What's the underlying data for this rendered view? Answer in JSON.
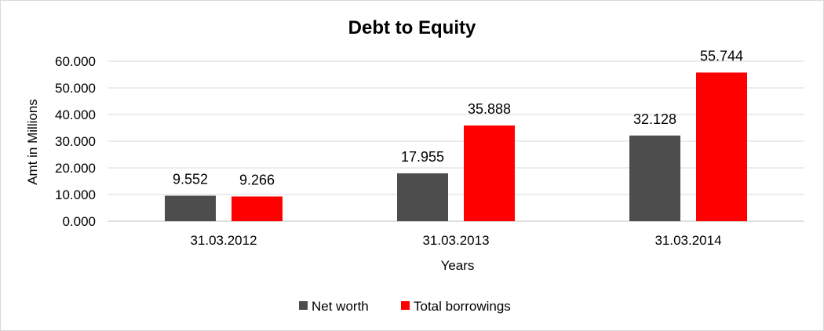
{
  "chart_data": {
    "type": "bar",
    "title": "Debt to Equity",
    "xlabel": "Years",
    "ylabel": "Amt in Millions",
    "categories": [
      "31.03.2012",
      "31.03.2013",
      "31.03.2014"
    ],
    "series": [
      {
        "name": "Net worth",
        "color": "#4d4d4d",
        "values": [
          9.552,
          17.955,
          32.128
        ],
        "labels": [
          "9.552",
          "17.955",
          "32.128"
        ]
      },
      {
        "name": "Total borrowings",
        "color": "#ff0000",
        "values": [
          9.266,
          35.888,
          55.744
        ],
        "labels": [
          "9.266",
          "35.888",
          "55.744"
        ]
      }
    ],
    "ylim": [
      0,
      60
    ],
    "yticks": [
      "0.000",
      "10.000",
      "20.000",
      "30.000",
      "40.000",
      "50.000",
      "60.000"
    ],
    "grid": true,
    "legend_position": "bottom"
  }
}
